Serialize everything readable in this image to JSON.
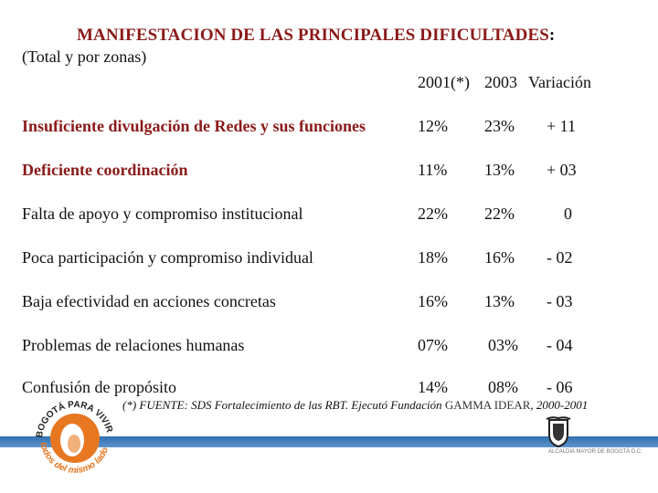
{
  "title": "MANIFESTACION DE LAS PRINCIPALES DIFICULTADES",
  "title_colon": ":",
  "subtitle": "(Total y por zonas)",
  "columns": {
    "c1": "2001(*)",
    "c2": "2003",
    "c3": "Variación"
  },
  "rows": [
    {
      "label": "Insuficiente divulgación de Redes y sus funciones",
      "v2001": "12%",
      "v2003": "23%",
      "var": "+ 11"
    },
    {
      "label": "Deficiente coordinación",
      "v2001": "11%",
      "v2003": "13%",
      "var": "+ 03"
    },
    {
      "label": "Falta de apoyo y compromiso institucional",
      "v2001": "22%",
      "v2003": "22%",
      "var": "0"
    },
    {
      "label": "Poca participación y compromiso individual",
      "v2001": "18%",
      "v2003": "16%",
      "var": "- 02"
    },
    {
      "label": "Baja efectividad en acciones concretas",
      "v2001": "16%",
      "v2003": "13%",
      "var": "- 03"
    },
    {
      "label": "Problemas de relaciones humanas",
      "v2001": "07%",
      "v2003": "03%",
      "var": "- 04"
    },
    {
      "label": "Confusión de propósito",
      "v2001": "14%",
      "v2003": "08%",
      "var": "- 06"
    }
  ],
  "footnote": {
    "prefix": "(*) FUENTE: SDS Fortalecimiento de las RBT. Ejecutó Fundación ",
    "org": "GAMMA IDEAR",
    "suffix": ", 2000-2001"
  },
  "logo_text": {
    "top": "BOGOTÁ PARA VIVIR",
    "bottom": "todos del mismo lado"
  },
  "crest_caption": "ALCALDÍA MAYOR DE BOGOTÁ D.C.",
  "colors": {
    "title": "#8b1a1a",
    "band": "#2f6fb0",
    "logo_orange": "#e87722"
  }
}
